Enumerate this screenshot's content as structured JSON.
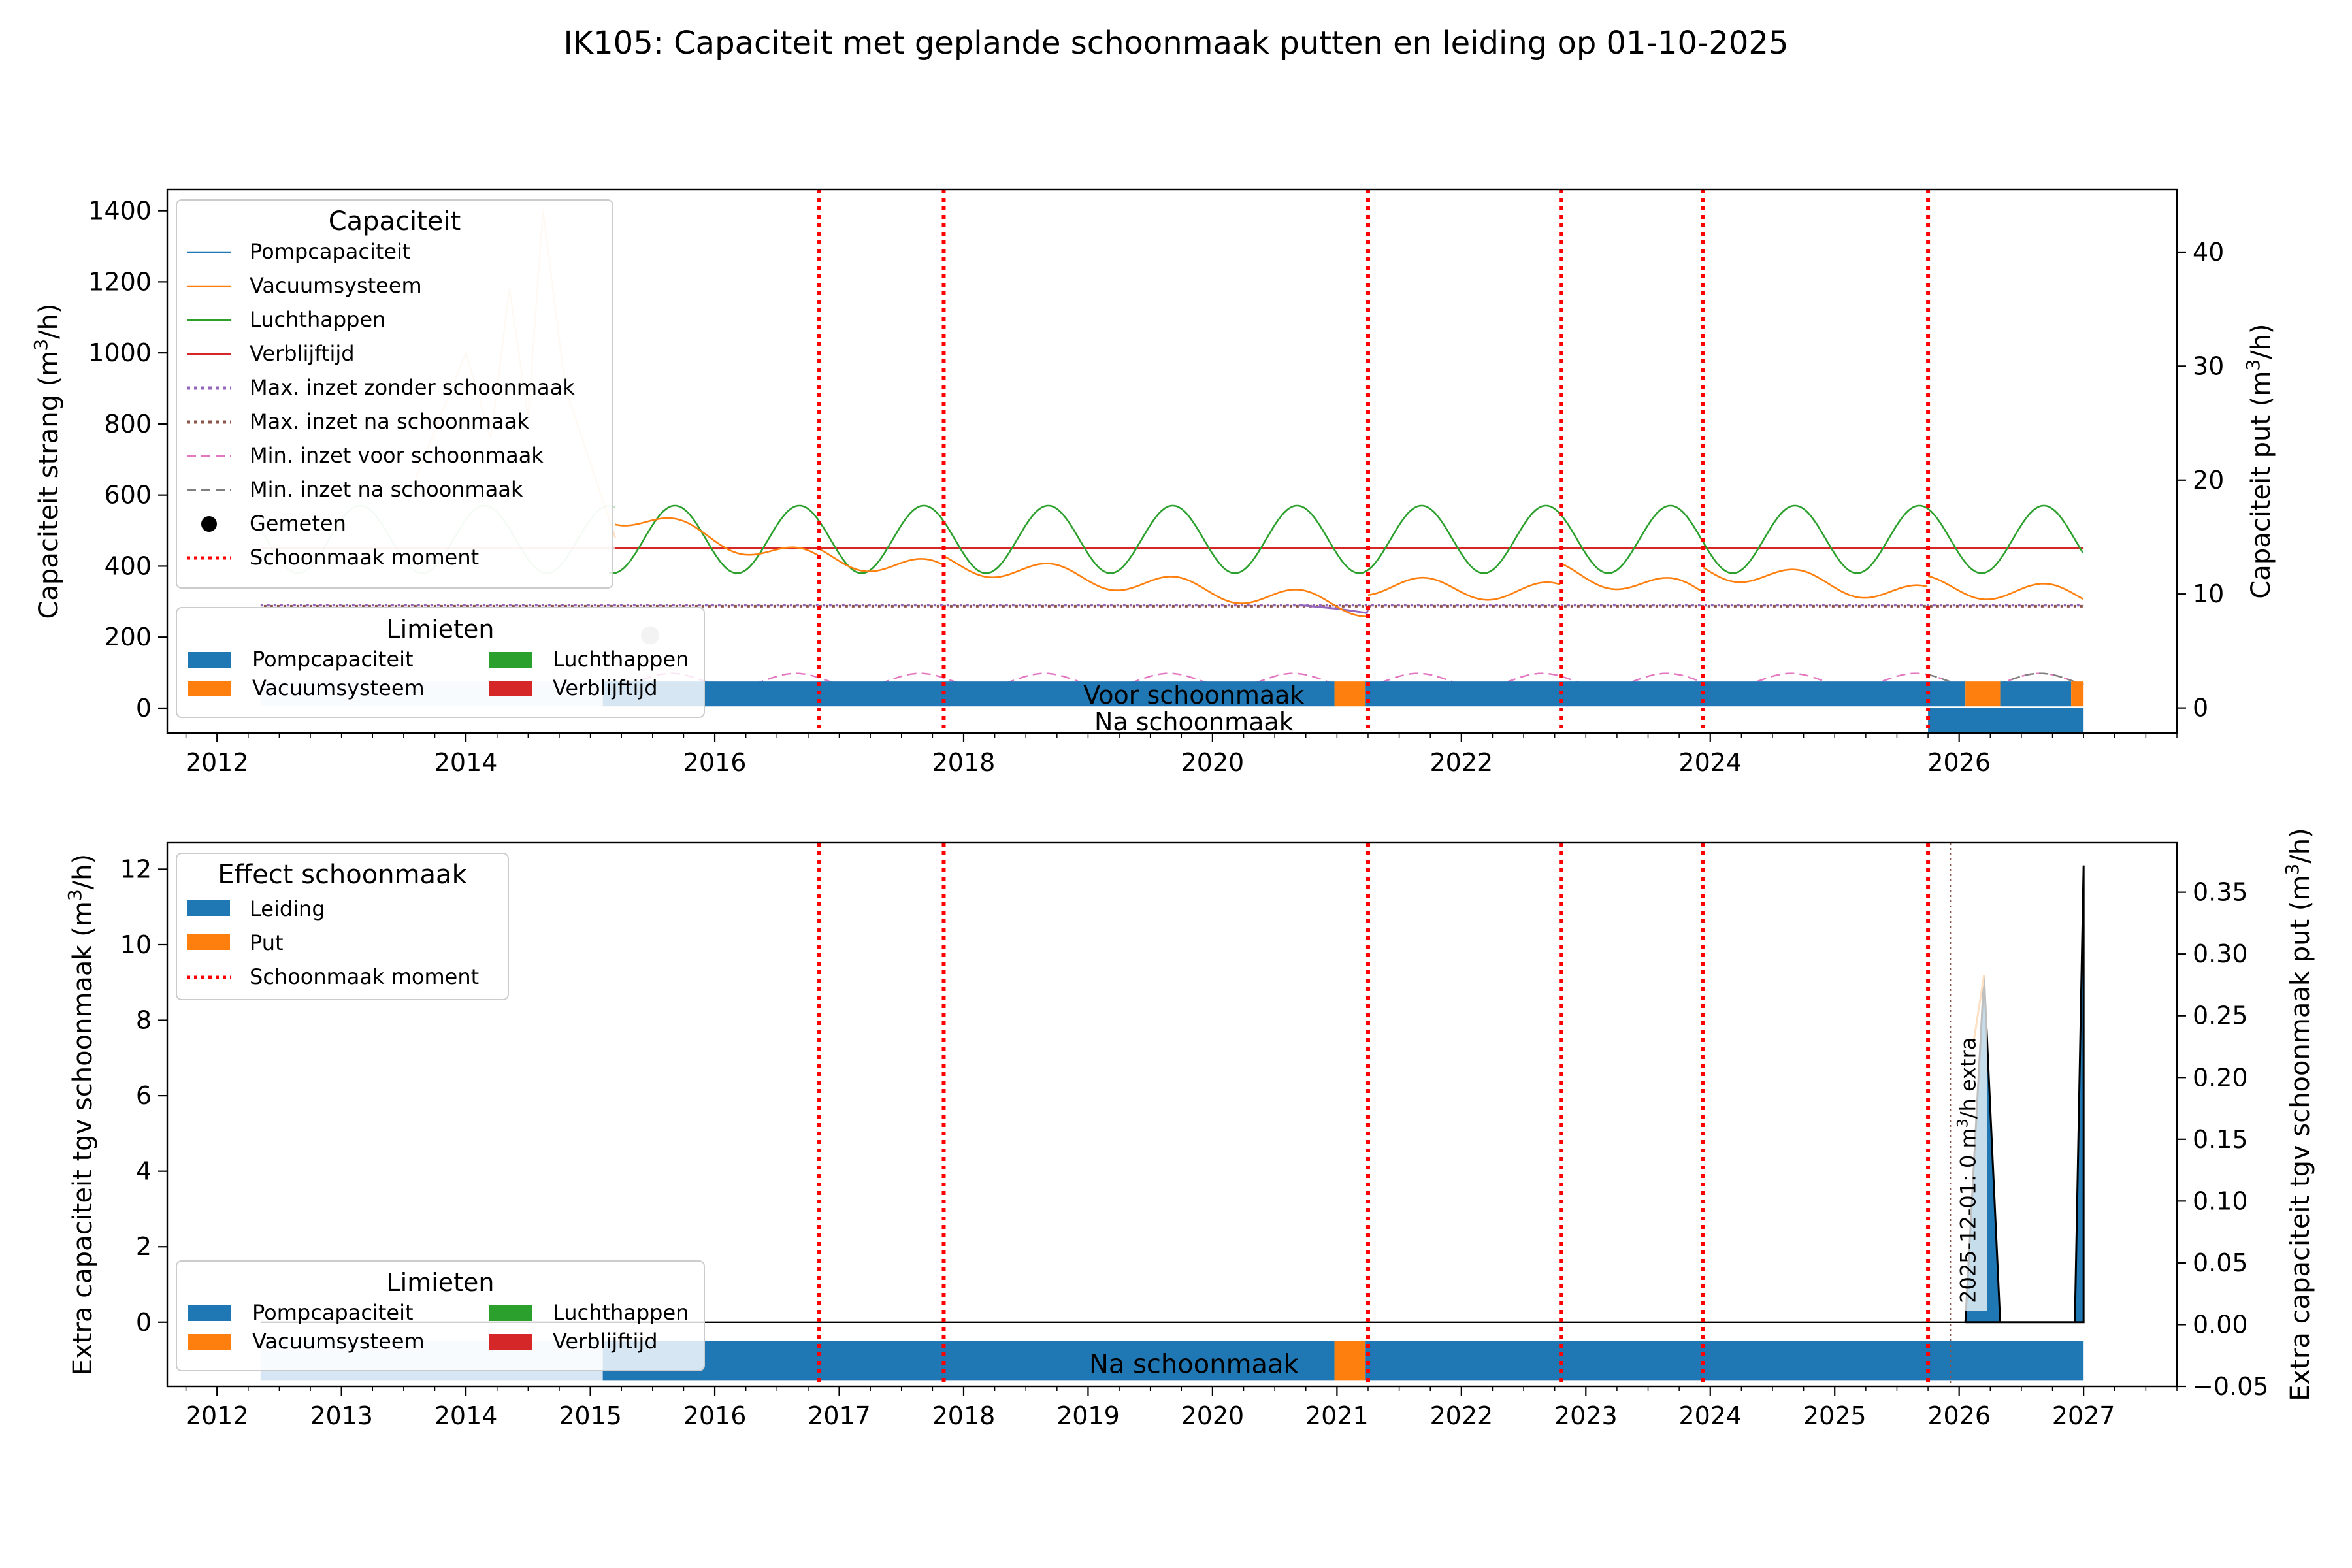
{
  "title": "IK105: Capaciteit met geplande schoonmaak putten en leiding op 01-10-2025",
  "colors": {
    "blue": "#1f77b4",
    "orange": "#ff7f0e",
    "green": "#2ca02c",
    "red": "#d62728",
    "purple": "#9467bd",
    "brown": "#8c564b",
    "pink": "#e377c2",
    "gray": "#7f7f7f",
    "lightblue": "#c6dbef",
    "schoonmaak": "#ff0000"
  },
  "chart_data": [
    {
      "type": "line",
      "ylabel": "Capaciteit strang (m³/h)",
      "ylabel_parts": [
        "Capaciteit strang (m",
        "3",
        "/h)"
      ],
      "ylabel2": "Capaciteit put (m³/h)",
      "ylabel2_parts": [
        "Capaciteit put (m",
        "3",
        "/h)"
      ],
      "xlim": [
        2011.6,
        2027.75
      ],
      "ylim": [
        -70,
        1460
      ],
      "ylim2": [
        -2.2,
        45.5
      ],
      "xticks": [
        2012,
        2014,
        2016,
        2018,
        2020,
        2022,
        2024,
        2026
      ],
      "yticks": [
        0,
        200,
        400,
        600,
        800,
        1000,
        1200,
        1400
      ],
      "yticks2": [
        0,
        10,
        20,
        30,
        40
      ],
      "schoonmaak_momenten": [
        2016.84,
        2017.84,
        2021.25,
        2022.8,
        2023.94,
        2025.75
      ],
      "series": [
        {
          "name": "Pompcapaciteit",
          "color": "#1f77b4",
          "style": "solid"
        },
        {
          "name": "Vacuumsysteem",
          "color": "#ff7f0e",
          "style": "solid"
        },
        {
          "name": "Luchthappen",
          "color": "#2ca02c",
          "style": "solid"
        },
        {
          "name": "Verblijftijd",
          "color": "#d62728",
          "style": "solid",
          "y": 450
        },
        {
          "name": "Max. inzet zonder schoonmaak",
          "color": "#9467bd",
          "style": "dotted",
          "y": 290
        },
        {
          "name": "Max. inzet na schoonmaak",
          "color": "#8c564b",
          "style": "dotted",
          "y": 288
        },
        {
          "name": "Min. inzet voor schoonmaak",
          "color": "#e377c2",
          "style": "dashed"
        },
        {
          "name": "Min. inzet na schoonmaak",
          "color": "#7f7f7f",
          "style": "dashed"
        }
      ],
      "luchthappen_wave": {
        "start": 2015.15,
        "end": 2027.0,
        "mean": 475,
        "amplitude": 95,
        "period_years": 1.0
      },
      "vacuum_segments": [
        {
          "start": 2015.2,
          "end": 2016.84,
          "from": 545,
          "to": 410
        },
        {
          "start": 2016.84,
          "end": 2017.84,
          "from": 430,
          "to": 385
        },
        {
          "start": 2017.84,
          "end": 2021.25,
          "from": 410,
          "to": 285
        },
        {
          "start": 2021.25,
          "end": 2022.8,
          "from": 345,
          "to": 325
        },
        {
          "start": 2022.8,
          "end": 2023.94,
          "from": 385,
          "to": 325
        },
        {
          "start": 2023.94,
          "end": 2025.75,
          "from": 395,
          "to": 315
        },
        {
          "start": 2025.75,
          "end": 2027.0,
          "from": 345,
          "to": 315
        }
      ],
      "gemeten": [
        {
          "x": 2015.48,
          "y": 205
        }
      ],
      "legend_capaciteit": {
        "title": "Capaciteit",
        "entries": [
          "Pompcapaciteit",
          "Vacuumsysteem",
          "Luchthappen",
          "Verblijftijd",
          "Max. inzet zonder schoonmaak",
          "Max. inzet na schoonmaak",
          "Min. inzet voor schoonmaak",
          "Min. inzet na schoonmaak",
          "Gemeten",
          "Schoonmaak moment"
        ]
      },
      "limieten": {
        "title": "Limieten",
        "entries": [
          "Pompcapaciteit",
          "Luchthappen",
          "Vacuumsysteem",
          "Verblijftijd"
        ],
        "voor_label": "Voor schoonmaak",
        "na_label": "Na schoonmaak",
        "voor_bar": [
          {
            "start": 2012.35,
            "end": 2020.98,
            "limit": "Pompcapaciteit"
          },
          {
            "start": 2020.98,
            "end": 2021.23,
            "limit": "Vacuumsysteem"
          },
          {
            "start": 2021.23,
            "end": 2026.05,
            "limit": "Pompcapaciteit"
          },
          {
            "start": 2026.05,
            "end": 2026.33,
            "limit": "Vacuumsysteem"
          },
          {
            "start": 2026.33,
            "end": 2026.9,
            "limit": "Pompcapaciteit"
          },
          {
            "start": 2026.9,
            "end": 2027.0,
            "limit": "Vacuumsysteem"
          }
        ],
        "na_bar": [
          {
            "start": 2025.75,
            "end": 2027.0,
            "limit": "Pompcapaciteit"
          }
        ]
      }
    },
    {
      "type": "area",
      "ylabel": "Extra capaciteit tgv schoonmaak (m³/h)",
      "ylabel_parts": [
        "Extra capaciteit tgv schoonmaak (m",
        "3",
        "/h)"
      ],
      "ylabel2": "Extra capaciteit tgv schoonmaak put (m³/h)",
      "ylabel2_parts": [
        "Extra capaciteit tgv schoonmaak put (m",
        "3",
        "/h)"
      ],
      "xlim": [
        2011.6,
        2027.75
      ],
      "ylim": [
        -1.7,
        12.7
      ],
      "ylim2": [
        -0.05,
        0.39
      ],
      "xticks": [
        2012,
        2013,
        2014,
        2015,
        2016,
        2017,
        2018,
        2019,
        2020,
        2021,
        2022,
        2023,
        2024,
        2025,
        2026,
        2027
      ],
      "yticks": [
        0,
        2,
        4,
        6,
        8,
        10,
        12
      ],
      "yticks2": [
        -0.05,
        0.0,
        0.05,
        0.1,
        0.15,
        0.2,
        0.25,
        0.3,
        0.35
      ],
      "ytick2_labels": [
        "−0.05",
        "0.00",
        "0.05",
        "0.10",
        "0.15",
        "0.20",
        "0.25",
        "0.30",
        "0.35"
      ],
      "schoonmaak_momenten": [
        2016.84,
        2017.84,
        2021.25,
        2022.8,
        2023.94,
        2025.75
      ],
      "leiding_area": {
        "x": [
          2011.6,
          2026.05,
          2026.2,
          2026.33,
          2026.9,
          2026.93,
          2027.0
        ],
        "y": [
          0,
          0,
          9.2,
          0,
          0,
          0,
          12.1
        ]
      },
      "annotation": {
        "x": 2025.93,
        "text": "2025-12-01: 0 m³/h extra",
        "text_parts": [
          "2025-12-01: 0 m",
          "3",
          "/h extra"
        ]
      },
      "legend_effect": {
        "title": "Effect schoonmaak",
        "entries": [
          "Leiding",
          "Put",
          "Schoonmaak moment"
        ]
      },
      "limieten": {
        "title": "Limieten",
        "entries": [
          "Pompcapaciteit",
          "Luchthappen",
          "Vacuumsysteem",
          "Verblijftijd"
        ],
        "na_label": "Na schoonmaak",
        "na_bar": [
          {
            "start": 2012.35,
            "end": 2020.98,
            "limit": "Pompcapaciteit"
          },
          {
            "start": 2020.98,
            "end": 2021.23,
            "limit": "Vacuumsysteem"
          },
          {
            "start": 2021.23,
            "end": 2027.0,
            "limit": "Pompcapaciteit"
          }
        ]
      }
    }
  ]
}
